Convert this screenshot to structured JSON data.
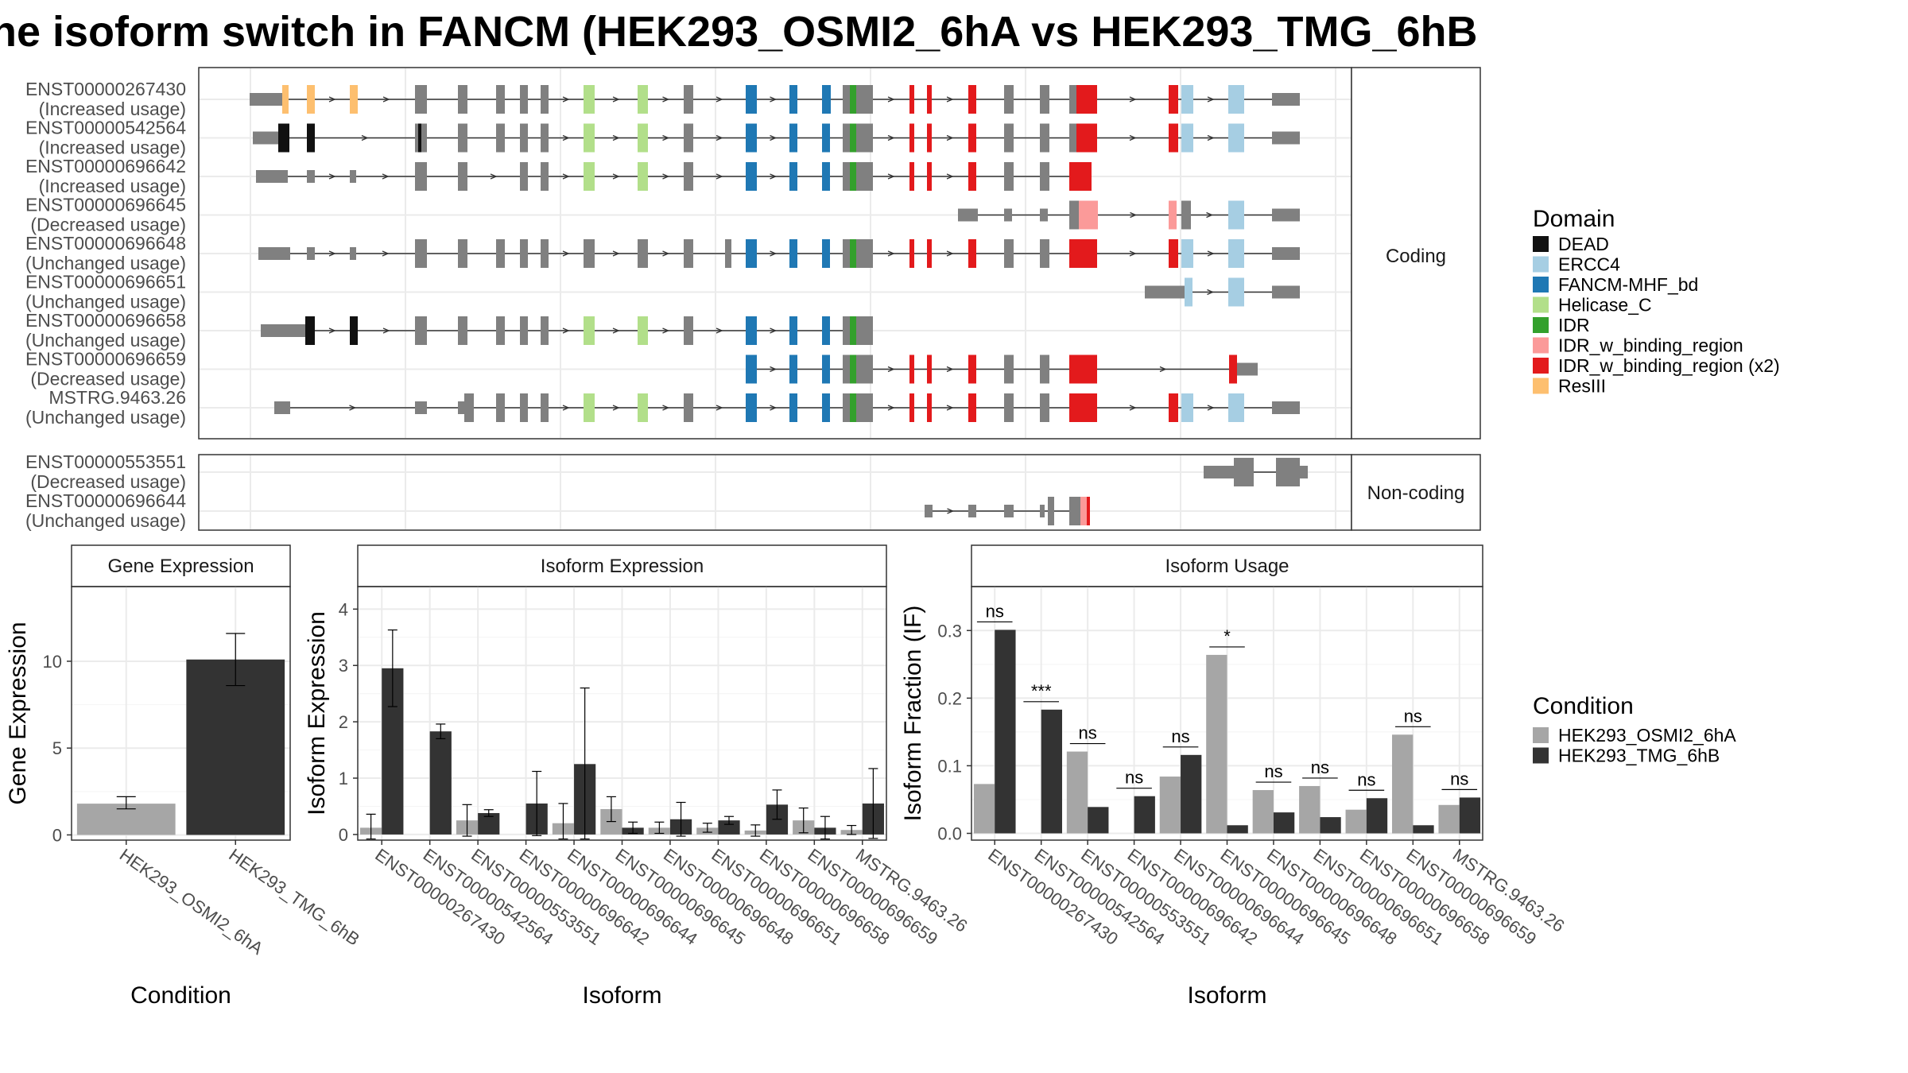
{
  "title": "he isoform switch in FANCM (HEK293_OSMI2_6hA vs HEK293_TMG_6hB",
  "colors": {
    "DEAD": "#111111",
    "ERCC4": "#a6cee3",
    "FANCM-MHF_bd": "#1f78b4",
    "Helicase_C": "#b2df8a",
    "IDR": "#33a02c",
    "IDR_w_binding_region": "#fb9a99",
    "IDR_w_binding_region (x2)": "#e31a1c",
    "ResIII": "#fdbf6f",
    "exon": "#808080",
    "cond1": "#a6a6a6",
    "cond2": "#333333"
  },
  "structure": {
    "coding_strip": "Coding",
    "noncoding_strip": "Non-coding",
    "coding": [
      {
        "id": "ENST00000267430",
        "usage": "(Increased usage)"
      },
      {
        "id": "ENST00000542564",
        "usage": "(Increased usage)"
      },
      {
        "id": "ENST00000696642",
        "usage": "(Increased usage)"
      },
      {
        "id": "ENST00000696645",
        "usage": "(Decreased usage)"
      },
      {
        "id": "ENST00000696648",
        "usage": "(Unchanged usage)"
      },
      {
        "id": "ENST00000696651",
        "usage": "(Unchanged usage)"
      },
      {
        "id": "ENST00000696658",
        "usage": "(Unchanged usage)"
      },
      {
        "id": "ENST00000696659",
        "usage": "(Decreased usage)"
      },
      {
        "id": "MSTRG.9463.26",
        "usage": "(Unchanged usage)"
      }
    ],
    "noncoding": [
      {
        "id": "ENST00000553551",
        "usage": "(Decreased usage)"
      },
      {
        "id": "ENST00000696644",
        "usage": "(Unchanged usage)"
      }
    ]
  },
  "legend_domain": {
    "title": "Domain",
    "items": [
      "DEAD",
      "ERCC4",
      "FANCM-MHF_bd",
      "Helicase_C",
      "IDR",
      "IDR_w_binding_region",
      "IDR_w_binding_region (x2)",
      "ResIII"
    ]
  },
  "legend_condition": {
    "title": "Condition",
    "items": [
      "HEK293_OSMI2_6hA",
      "HEK293_TMG_6hB"
    ]
  },
  "chart_data": [
    {
      "type": "bar",
      "title": "Gene Expression",
      "xlabel": "Condition",
      "ylabel": "Gene Expression",
      "categories": [
        "HEK293_OSMI2_6hA",
        "HEK293_TMG_6hB"
      ],
      "values": [
        1.8,
        10.1
      ],
      "error_low": [
        1.5,
        8.6
      ],
      "error_high": [
        2.2,
        11.6
      ],
      "yticks": [
        0,
        5,
        10
      ],
      "ylim": [
        -0.3,
        14.3
      ]
    },
    {
      "type": "bar",
      "title": "Isoform Expression",
      "xlabel": "Isoform",
      "ylabel": "Isoform Expression",
      "categories": [
        "ENST00000267430",
        "ENST00000542564",
        "ENST00000553551",
        "ENST00000696642",
        "ENST00000696644",
        "ENST00000696645",
        "ENST00000696648",
        "ENST00000696651",
        "ENST00000696658",
        "ENST00000696659",
        "MSTRG.9463.26"
      ],
      "series": [
        {
          "name": "HEK293_OSMI2_6hA",
          "values": [
            0.12,
            0.0,
            0.25,
            0.0,
            0.2,
            0.45,
            0.12,
            0.12,
            0.07,
            0.25,
            0.08
          ],
          "err": [
            0.24,
            0.0,
            0.28,
            0.0,
            0.35,
            0.22,
            0.1,
            0.08,
            0.1,
            0.22,
            0.08
          ]
        },
        {
          "name": "HEK293_TMG_6hB",
          "values": [
            2.95,
            1.83,
            0.38,
            0.55,
            1.25,
            0.12,
            0.27,
            0.25,
            0.53,
            0.12,
            0.55
          ],
          "err": [
            0.68,
            0.13,
            0.06,
            0.57,
            1.35,
            0.1,
            0.3,
            0.07,
            0.26,
            0.2,
            0.62
          ]
        }
      ],
      "yticks": [
        0,
        1,
        2,
        3,
        4
      ],
      "ylim": [
        -0.1,
        4.4
      ]
    },
    {
      "type": "bar",
      "title": "Isoform Usage",
      "xlabel": "Isoform",
      "ylabel": "Isoform Fraction (IF)",
      "categories": [
        "ENST00000267430",
        "ENST00000542564",
        "ENST00000553551",
        "ENST00000696642",
        "ENST00000696644",
        "ENST00000696645",
        "ENST00000696648",
        "ENST00000696651",
        "ENST00000696658",
        "ENST00000696659",
        "MSTRG.9463.26"
      ],
      "series": [
        {
          "name": "HEK293_OSMI2_6hA",
          "values": [
            0.073,
            0.0,
            0.121,
            0.0,
            0.084,
            0.264,
            0.064,
            0.07,
            0.035,
            0.146,
            0.042
          ]
        },
        {
          "name": "HEK293_TMG_6hB",
          "values": [
            0.301,
            0.183,
            0.039,
            0.055,
            0.116,
            0.012,
            0.031,
            0.024,
            0.052,
            0.012,
            0.053
          ]
        }
      ],
      "significance": [
        "ns",
        "***",
        "ns",
        "ns",
        "ns",
        "*",
        "ns",
        "ns",
        "ns",
        "ns",
        "ns"
      ],
      "yticks": [
        0.0,
        0.1,
        0.2,
        0.3
      ],
      "ylim": [
        -0.01,
        0.365
      ]
    }
  ]
}
